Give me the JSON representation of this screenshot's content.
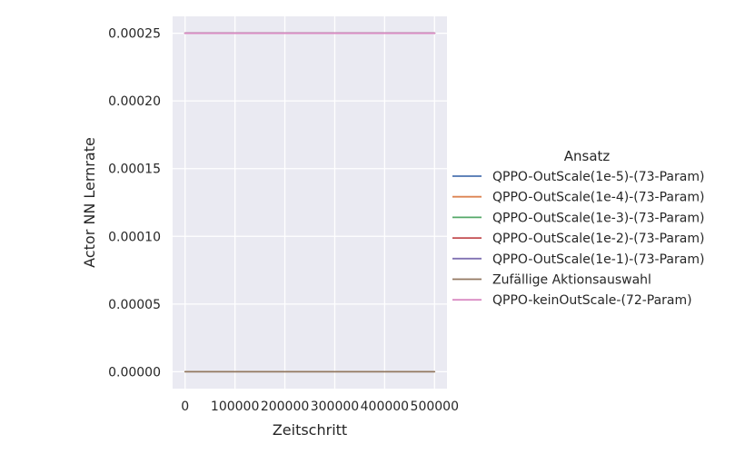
{
  "chart_data": {
    "type": "line",
    "xlabel": "Zeitschritt",
    "ylabel": "Actor NN Lernrate",
    "xlim": [
      -25000,
      525000
    ],
    "ylim": [
      -1.25e-05,
      0.0002625
    ],
    "xticks": [
      0,
      100000,
      200000,
      300000,
      400000,
      500000
    ],
    "xtick_labels": [
      "0",
      "100000",
      "200000",
      "300000",
      "400000",
      "500000"
    ],
    "yticks": [
      0,
      5e-05,
      0.0001,
      0.00015,
      0.0002,
      0.00025
    ],
    "ytick_labels": [
      "0.00000",
      "0.00005",
      "0.00010",
      "0.00015",
      "0.00020",
      "0.00025"
    ],
    "grid": true,
    "legend": {
      "title": "Ansatz",
      "placement": "right-outside"
    },
    "series": [
      {
        "name": "QPPO-OutScale(1e-5)-(73-Param)",
        "color": "#4c72b0",
        "x": [
          0,
          500000
        ],
        "y": [
          0.00025,
          0.00025
        ]
      },
      {
        "name": "QPPO-OutScale(1e-4)-(73-Param)",
        "color": "#dd8452",
        "x": [
          0,
          500000
        ],
        "y": [
          0.00025,
          0.00025
        ]
      },
      {
        "name": "QPPO-OutScale(1e-3)-(73-Param)",
        "color": "#55a868",
        "x": [
          0,
          500000
        ],
        "y": [
          0.00025,
          0.00025
        ]
      },
      {
        "name": "QPPO-OutScale(1e-2)-(73-Param)",
        "color": "#c44e52",
        "x": [
          0,
          500000
        ],
        "y": [
          0.00025,
          0.00025
        ]
      },
      {
        "name": "QPPO-OutScale(1e-1)-(73-Param)",
        "color": "#8172b3",
        "x": [
          0,
          500000
        ],
        "y": [
          0.00025,
          0.00025
        ]
      },
      {
        "name": "Zufällige Aktionsauswahl",
        "color": "#937860",
        "x": [
          0,
          500000
        ],
        "y": [
          0,
          0
        ]
      },
      {
        "name": "QPPO-keinOutScale-(72-Param)",
        "color": "#da8bc3",
        "x": [
          0,
          500000
        ],
        "y": [
          0.00025,
          0.00025
        ]
      }
    ]
  }
}
